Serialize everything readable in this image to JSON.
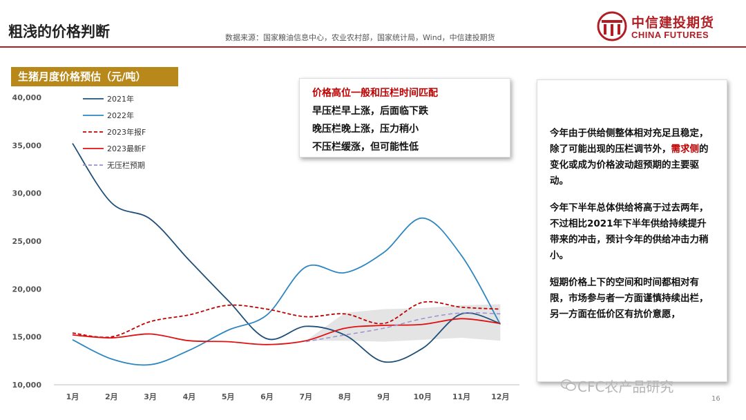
{
  "page": {
    "title": "粗浅的价格判断",
    "source": "数据来源：国家粮油信息中心，农业农村部，国家统计局，Wind，中信建投期货",
    "logo_cn": "中信建投期货",
    "logo_en": "CHINA FUTURES",
    "page_number": "16",
    "watermark": "CFC农产品研究"
  },
  "callout": {
    "heading": "价格高位一般和压栏时间匹配",
    "lines": [
      "早压栏早上涨，后面临下跌",
      "晚压栏晚上涨，压力稍小",
      "不压栏缓涨，但可能性低"
    ]
  },
  "side_text": {
    "p1_before": "今年由于供给侧整体相对充足且稳定，除了可能出现的压栏调节外，",
    "p1_highlight": "需求侧",
    "p1_after": "的变化或成为价格波动超预期的主要驱动。",
    "p2": "今年下半年总体供给将高于过去两年，不过相比2021年下半年供给持续提升带来的冲击，预计今年的供给冲击力稍小。",
    "p3": "短期价格上下的空间和时间都相对有限，市场参与者一方面谨慎持续出栏，另一方面在低价区有抗价意愿，"
  },
  "colors": {
    "accent_red": "#b01d23",
    "title_bar": "#b8891a",
    "s2021": "#1f4e79",
    "s2022": "#2e86c1",
    "s2023_report": "#c00000",
    "s2023_latest": "#e01010",
    "s_no_hold": "#9b8fd0",
    "band": "#d9d9d9"
  },
  "chart_data": {
    "type": "line",
    "title": "生猪月度价格预估（元/吨）",
    "categories": [
      "1月",
      "2月",
      "3月",
      "4月",
      "5月",
      "6月",
      "7月",
      "8月",
      "9月",
      "10月",
      "11月",
      "12月"
    ],
    "ylim": [
      10000,
      40000
    ],
    "yticks": [
      "10,000",
      "15,000",
      "20,000",
      "25,000",
      "30,000",
      "35,000",
      "40,000"
    ],
    "ytick_values": [
      10000,
      15000,
      20000,
      25000,
      30000,
      35000,
      40000
    ],
    "legend_position": "top-left",
    "grid": false,
    "series": [
      {
        "name": "2021年",
        "style": "solid",
        "color_key": "s2021",
        "values": [
          35200,
          29000,
          27300,
          23000,
          18800,
          14800,
          16100,
          15200,
          12400,
          13800,
          17400,
          16400
        ]
      },
      {
        "name": "2022年",
        "style": "solid",
        "color_key": "s2022",
        "values": [
          14700,
          12700,
          12100,
          13600,
          15700,
          17300,
          22300,
          21700,
          23800,
          27400,
          23500,
          16300
        ]
      },
      {
        "name": "2023年报F",
        "style": "dashed",
        "color_key": "s2023_report",
        "values": [
          15400,
          15000,
          16600,
          17300,
          18300,
          17900,
          17100,
          17400,
          16400,
          18600,
          18100,
          17900
        ]
      },
      {
        "name": "2023最新F",
        "style": "solid",
        "color_key": "s2023_latest",
        "values": [
          15200,
          14900,
          15300,
          14600,
          14500,
          14200,
          14600,
          15900,
          16200,
          16300,
          16900,
          16400
        ]
      },
      {
        "name": "无压栏预期",
        "style": "dashed",
        "color_key": "s_no_hold",
        "values": [
          null,
          null,
          null,
          null,
          null,
          null,
          14500,
          15200,
          15900,
          16900,
          17500,
          17400
        ]
      }
    ],
    "band": {
      "x_from": "7月",
      "x_to": "12月",
      "upper": [
        14600,
        17500,
        17900,
        18000,
        18300,
        18400
      ],
      "lower": [
        14600,
        14600,
        14500,
        14700,
        14900,
        14600
      ]
    }
  }
}
